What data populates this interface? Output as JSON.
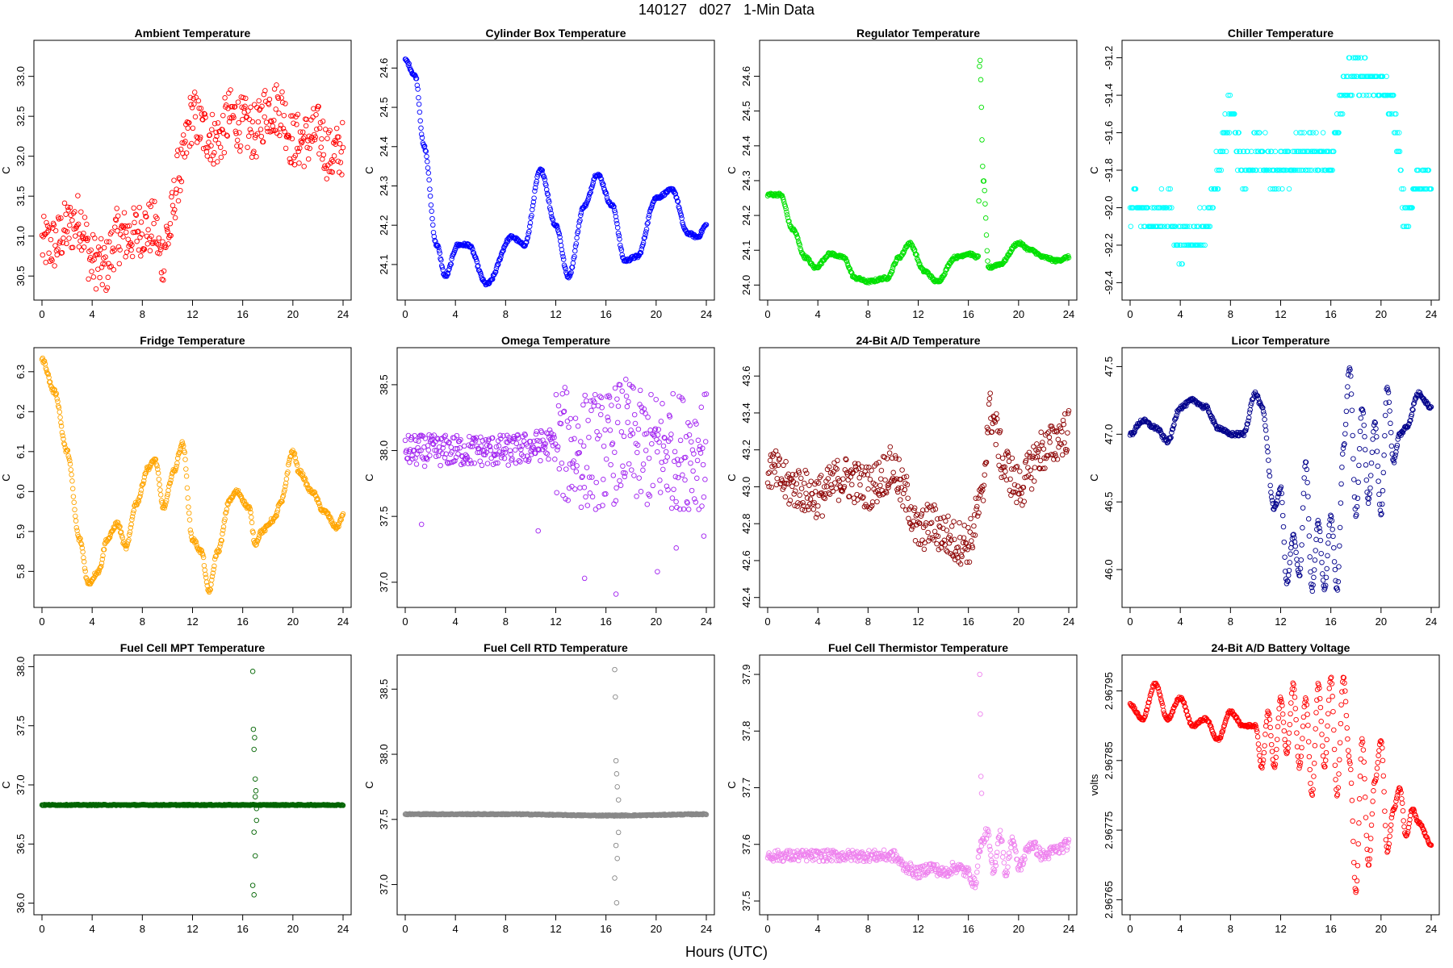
{
  "figure": {
    "title": "140127   d027   1-Min Data",
    "xlabel": "Hours (UTC)"
  },
  "chart_data": [
    {
      "type": "scatter",
      "title": "Ambient Temperature",
      "ylabel": "C",
      "color": "#ff0000",
      "xlim": [
        0,
        24
      ],
      "ylim": [
        30.3,
        33.35
      ],
      "xticks": [
        0,
        4,
        8,
        12,
        16,
        20,
        24
      ],
      "yticks": [
        "30.5",
        "31.0",
        "31.5",
        "32.0",
        "32.5",
        "33.0"
      ],
      "series": [
        {
          "x": [
            0,
            1,
            2,
            3,
            4,
            5,
            6,
            7,
            8,
            9,
            9.5,
            10,
            11,
            12,
            13,
            14,
            15,
            16,
            17,
            18,
            19,
            20,
            21,
            22,
            23,
            24
          ],
          "y": [
            30.9,
            30.9,
            31.1,
            31.2,
            30.7,
            30.6,
            31.0,
            31.0,
            31.1,
            31.1,
            30.7,
            31.0,
            31.8,
            32.5,
            32.3,
            32.2,
            32.5,
            32.4,
            32.3,
            32.6,
            32.6,
            32.2,
            32.2,
            32.3,
            32.0,
            32.1
          ],
          "noise": 0.35
        }
      ]
    },
    {
      "type": "scatter",
      "title": "Cylinder Box Temperature",
      "ylabel": "C",
      "color": "#0000ff",
      "xlim": [
        0,
        24
      ],
      "ylim": [
        24.03,
        24.65
      ],
      "xticks": [
        0,
        4,
        8,
        12,
        16,
        20,
        24
      ],
      "yticks": [
        "24.1",
        "24.2",
        "24.3",
        "24.4",
        "24.5",
        "24.6"
      ],
      "series": [
        {
          "x": [
            0,
            0.8,
            1.5,
            2.5,
            3.2,
            4.2,
            5,
            6.5,
            8.5,
            9.5,
            10.8,
            12,
            13,
            14.3,
            15.3,
            16.5,
            17.5,
            18.5,
            20,
            21.3,
            22.5,
            23.3,
            24
          ],
          "y": [
            24.62,
            24.58,
            24.4,
            24.15,
            24.07,
            24.15,
            24.15,
            24.05,
            24.17,
            24.15,
            24.34,
            24.2,
            24.07,
            24.25,
            24.33,
            24.25,
            24.11,
            24.12,
            24.27,
            24.29,
            24.18,
            24.17,
            24.2
          ],
          "noise": 0.004
        }
      ]
    },
    {
      "type": "scatter",
      "title": "Regulator Temperature",
      "ylabel": "C",
      "color": "#00e000",
      "xlim": [
        0,
        24
      ],
      "ylim": [
        23.98,
        24.68
      ],
      "xticks": [
        0,
        4,
        8,
        12,
        16,
        20,
        24
      ],
      "yticks": [
        "24.0",
        "24.1",
        "24.2",
        "24.3",
        "24.4",
        "24.5",
        "24.6"
      ],
      "series": [
        {
          "x": [
            0,
            1,
            2,
            3,
            3.8,
            5,
            6,
            7,
            8,
            9.5,
            10.5,
            11.3,
            12.5,
            13.5,
            15,
            16,
            16.8,
            16.9,
            17.2,
            17.6,
            18.5,
            20,
            21,
            22,
            23,
            24
          ],
          "y": [
            24.26,
            24.26,
            24.16,
            24.08,
            24.05,
            24.09,
            24.08,
            24.02,
            24.01,
            24.02,
            24.08,
            24.12,
            24.04,
            24.01,
            24.08,
            24.09,
            24.08,
            24.66,
            24.3,
            24.05,
            24.06,
            24.12,
            24.1,
            24.08,
            24.07,
            24.08
          ],
          "noise": 0.004
        }
      ]
    },
    {
      "type": "scatter",
      "title": "Chiller Temperature",
      "ylabel": "C",
      "color": "#00ffff",
      "xlim": [
        0,
        24
      ],
      "ylim": [
        -92.45,
        -91.15
      ],
      "xticks": [
        0,
        4,
        8,
        12,
        16,
        20,
        24
      ],
      "yticks": [
        "-92.4",
        "-92.2",
        "-92.0",
        "-91.8",
        "-91.6",
        "-91.4",
        "-91.2"
      ],
      "series": [
        {
          "x": [
            0,
            2,
            3,
            4,
            5,
            6,
            7,
            8,
            9,
            10,
            12,
            14,
            16,
            17,
            18,
            20,
            21,
            22,
            23,
            24
          ],
          "y": [
            -92.0,
            -92.05,
            -92.0,
            -92.2,
            -92.15,
            -92.1,
            -91.8,
            -91.5,
            -91.8,
            -91.7,
            -91.8,
            -91.7,
            -91.75,
            -91.35,
            -91.3,
            -91.35,
            -91.5,
            -92.05,
            -91.85,
            -91.85
          ],
          "noise": 0.1,
          "quantize": 0.1
        }
      ]
    },
    {
      "type": "scatter",
      "title": "Fridge Temperature",
      "ylabel": "C",
      "color": "#ffa500",
      "xlim": [
        0,
        24
      ],
      "ylim": [
        5.73,
        6.34
      ],
      "xticks": [
        0,
        4,
        8,
        12,
        16,
        20,
        24
      ],
      "yticks": [
        "5.8",
        "5.9",
        "6.0",
        "6.1",
        "6.2",
        "6.3"
      ],
      "series": [
        {
          "x": [
            0,
            1,
            2,
            3,
            3.7,
            4.5,
            5.2,
            6,
            6.7,
            7.5,
            8.5,
            9,
            9.7,
            10.5,
            11.2,
            12,
            12.7,
            13.3,
            14,
            15,
            15.5,
            16.5,
            17,
            17.5,
            18.5,
            19,
            20,
            20.5,
            21.5,
            22.5,
            23.5,
            24
          ],
          "y": [
            6.33,
            6.25,
            6.1,
            5.88,
            5.77,
            5.8,
            5.88,
            5.92,
            5.86,
            5.97,
            6.06,
            6.08,
            5.96,
            6.05,
            6.12,
            5.88,
            5.85,
            5.75,
            5.85,
            5.98,
            6.0,
            5.96,
            5.87,
            5.9,
            5.93,
            5.97,
            6.1,
            6.05,
            6.0,
            5.95,
            5.91,
            5.94
          ],
          "noise": 0.005
        }
      ]
    },
    {
      "type": "scatter",
      "title": "Omega Temperature",
      "ylabel": "C",
      "color": "#a020f0",
      "xlim": [
        0,
        24
      ],
      "ylim": [
        36.87,
        38.72
      ],
      "xticks": [
        0,
        4,
        8,
        12,
        16,
        20,
        24
      ],
      "yticks": [
        "37.0",
        "37.5",
        "38.0",
        "38.5"
      ],
      "series": [
        {
          "x": [
            0,
            4,
            8,
            12,
            14,
            16,
            17.5,
            19,
            21,
            22,
            24
          ],
          "y": [
            38.0,
            38.0,
            38.0,
            38.05,
            38.0,
            38.0,
            38.1,
            38.0,
            38.0,
            38.0,
            38.0
          ],
          "noise": 0.12,
          "spread_after": 12,
          "spread": 0.45
        }
      ],
      "outliers": {
        "x": [
          1.3,
          10.6,
          14.3,
          16.8,
          20.1,
          21.6,
          23.8
        ],
        "y": [
          37.44,
          37.39,
          37.03,
          36.91,
          37.08,
          37.26,
          37.35
        ]
      }
    },
    {
      "type": "scatter",
      "title": "24-Bit A/D Temperature",
      "ylabel": "C",
      "color": "#8b0000",
      "xlim": [
        0,
        24
      ],
      "ylim": [
        42.39,
        43.71
      ],
      "xticks": [
        0,
        4,
        8,
        12,
        16,
        20,
        24
      ],
      "yticks": [
        "42.4",
        "42.6",
        "42.8",
        "43.0",
        "43.2",
        "43.4",
        "43.6"
      ],
      "series": [
        {
          "x": [
            0,
            2,
            4,
            6,
            8,
            10,
            11,
            12,
            13,
            14,
            15,
            16,
            17,
            17.7,
            19,
            20,
            22,
            24
          ],
          "y": [
            43.1,
            43.0,
            42.95,
            43.05,
            43.0,
            43.1,
            42.95,
            42.75,
            42.8,
            42.75,
            42.7,
            42.7,
            42.9,
            43.4,
            43.1,
            43.0,
            43.2,
            43.3
          ],
          "noise": 0.12
        }
      ]
    },
    {
      "type": "scatter",
      "title": "Licor Temperature",
      "ylabel": "C",
      "color": "#00008b",
      "xlim": [
        0,
        24
      ],
      "ylim": [
        45.78,
        47.58
      ],
      "xticks": [
        0,
        4,
        8,
        12,
        16,
        20,
        24
      ],
      "yticks": [
        "46.0",
        "46.5",
        "47.0",
        "47.5"
      ],
      "series": [
        {
          "x": [
            0,
            1,
            2,
            3,
            4,
            5,
            6,
            7,
            8,
            9,
            10,
            10.5,
            11.5,
            12,
            12.5,
            13,
            13.5,
            14,
            14.5,
            15,
            15.5,
            16,
            16.5,
            17,
            17.5,
            18,
            18.5,
            19,
            19.5,
            20,
            20.5,
            21,
            21.5,
            22,
            23,
            24
          ],
          "y": [
            47.0,
            47.1,
            47.05,
            46.95,
            47.2,
            47.25,
            47.2,
            47.05,
            47.0,
            47.0,
            47.3,
            47.2,
            46.45,
            46.6,
            45.9,
            46.25,
            45.95,
            46.8,
            45.85,
            46.35,
            45.85,
            46.4,
            45.85,
            46.9,
            47.5,
            46.4,
            47.2,
            46.5,
            47.1,
            46.4,
            47.35,
            46.8,
            47.0,
            47.05,
            47.3,
            47.2
          ],
          "noise": 0.015
        }
      ]
    },
    {
      "type": "scatter",
      "title": "Fuel Cell MPT Temperature",
      "ylabel": "C",
      "color": "#006400",
      "xlim": [
        0,
        24
      ],
      "ylim": [
        35.97,
        38.03
      ],
      "xticks": [
        0,
        4,
        8,
        12,
        16,
        20,
        24
      ],
      "yticks": [
        "36.0",
        "36.5",
        "37.0",
        "37.5",
        "38.0"
      ],
      "series": [
        {
          "x": [
            0,
            8,
            16,
            17,
            24
          ],
          "y": [
            36.83,
            36.83,
            36.83,
            36.83,
            36.83
          ],
          "noise": 0.004
        }
      ],
      "outliers": {
        "x": [
          16.8,
          16.85,
          16.9,
          16.95,
          17.0,
          17.05,
          17.1,
          16.9,
          17.0,
          16.8,
          16.9,
          17.1,
          17.0
        ],
        "y": [
          37.96,
          37.47,
          37.3,
          37.4,
          37.05,
          36.95,
          36.7,
          36.6,
          36.4,
          36.15,
          36.07,
          36.8,
          36.9
        ]
      }
    },
    {
      "type": "scatter",
      "title": "Fuel Cell RTD Temperature",
      "ylabel": "C",
      "color": "#888888",
      "xlim": [
        0,
        24
      ],
      "ylim": [
        36.83,
        38.7
      ],
      "xticks": [
        0,
        4,
        8,
        12,
        16,
        20,
        24
      ],
      "yticks": [
        "37.0",
        "37.5",
        "38.0",
        "38.5"
      ],
      "series": [
        {
          "x": [
            0,
            8,
            16,
            17,
            24
          ],
          "y": [
            37.54,
            37.54,
            37.53,
            37.53,
            37.54
          ],
          "noise": 0.004
        }
      ],
      "outliers": {
        "x": [
          16.7,
          16.75,
          16.8,
          16.85,
          16.9,
          17.0,
          16.8,
          16.9,
          16.7,
          16.85,
          17.0
        ],
        "y": [
          38.65,
          38.44,
          37.95,
          37.85,
          37.75,
          37.65,
          37.3,
          37.2,
          37.05,
          36.86,
          37.4
        ]
      }
    },
    {
      "type": "scatter",
      "title": "Fuel Cell Thermistor Temperature",
      "ylabel": "C",
      "color": "#ee82ee",
      "xlim": [
        0,
        24
      ],
      "ylim": [
        37.49,
        37.92
      ],
      "xticks": [
        0,
        4,
        8,
        12,
        16,
        20,
        24
      ],
      "yticks": [
        "37.5",
        "37.6",
        "37.7",
        "37.8",
        "37.9"
      ],
      "series": [
        {
          "x": [
            0,
            2,
            4,
            6,
            8,
            10,
            11,
            12,
            13,
            14,
            15,
            16,
            16.5,
            17,
            17.5,
            18,
            18.5,
            19,
            19.5,
            20,
            21,
            22,
            23,
            24
          ],
          "y": [
            37.58,
            37.58,
            37.58,
            37.58,
            37.58,
            37.58,
            37.56,
            37.55,
            37.56,
            37.55,
            37.56,
            37.55,
            37.53,
            37.6,
            37.62,
            37.55,
            37.62,
            37.55,
            37.61,
            37.56,
            37.6,
            37.58,
            37.59,
            37.6
          ],
          "noise": 0.01
        }
      ],
      "outliers": {
        "x": [
          16.9,
          16.95,
          17.0,
          17.05
        ],
        "y": [
          37.9,
          37.83,
          37.72,
          37.69
        ]
      }
    },
    {
      "type": "scatter",
      "title": "24-Bit A/D Battery Voltage",
      "ylabel": "volts",
      "color": "#ff0000",
      "xlim": [
        0,
        24
      ],
      "ylim": [
        2.96764,
        2.96799
      ],
      "xticks": [
        0,
        4,
        8,
        12,
        16,
        20,
        24
      ],
      "yticks": [
        "2.96765",
        "2.96775",
        "2.96785",
        "2.96795"
      ],
      "series": [
        {
          "x": [
            0,
            1,
            2,
            3,
            4,
            5,
            6,
            7,
            8,
            9,
            10,
            10.5,
            11,
            11.5,
            12,
            12.5,
            13,
            13.5,
            14,
            14.5,
            15,
            15.5,
            16,
            16.5,
            17,
            17.5,
            18,
            18.5,
            19,
            19.5,
            20,
            20.5,
            21,
            21.5,
            22,
            22.5,
            23,
            24
          ],
          "y": [
            2.96793,
            2.96791,
            2.96796,
            2.96791,
            2.96794,
            2.9679,
            2.96791,
            2.96788,
            2.96792,
            2.9679,
            2.9679,
            2.96784,
            2.96792,
            2.96784,
            2.96794,
            2.96786,
            2.96796,
            2.96784,
            2.96794,
            2.9678,
            2.96796,
            2.96784,
            2.96797,
            2.9678,
            2.96797,
            2.96785,
            2.96766,
            2.96788,
            2.9677,
            2.96782,
            2.96788,
            2.96772,
            2.96778,
            2.96781,
            2.96774,
            2.96778,
            2.96776,
            2.96773
          ],
          "noise": 2e-06
        }
      ]
    }
  ]
}
